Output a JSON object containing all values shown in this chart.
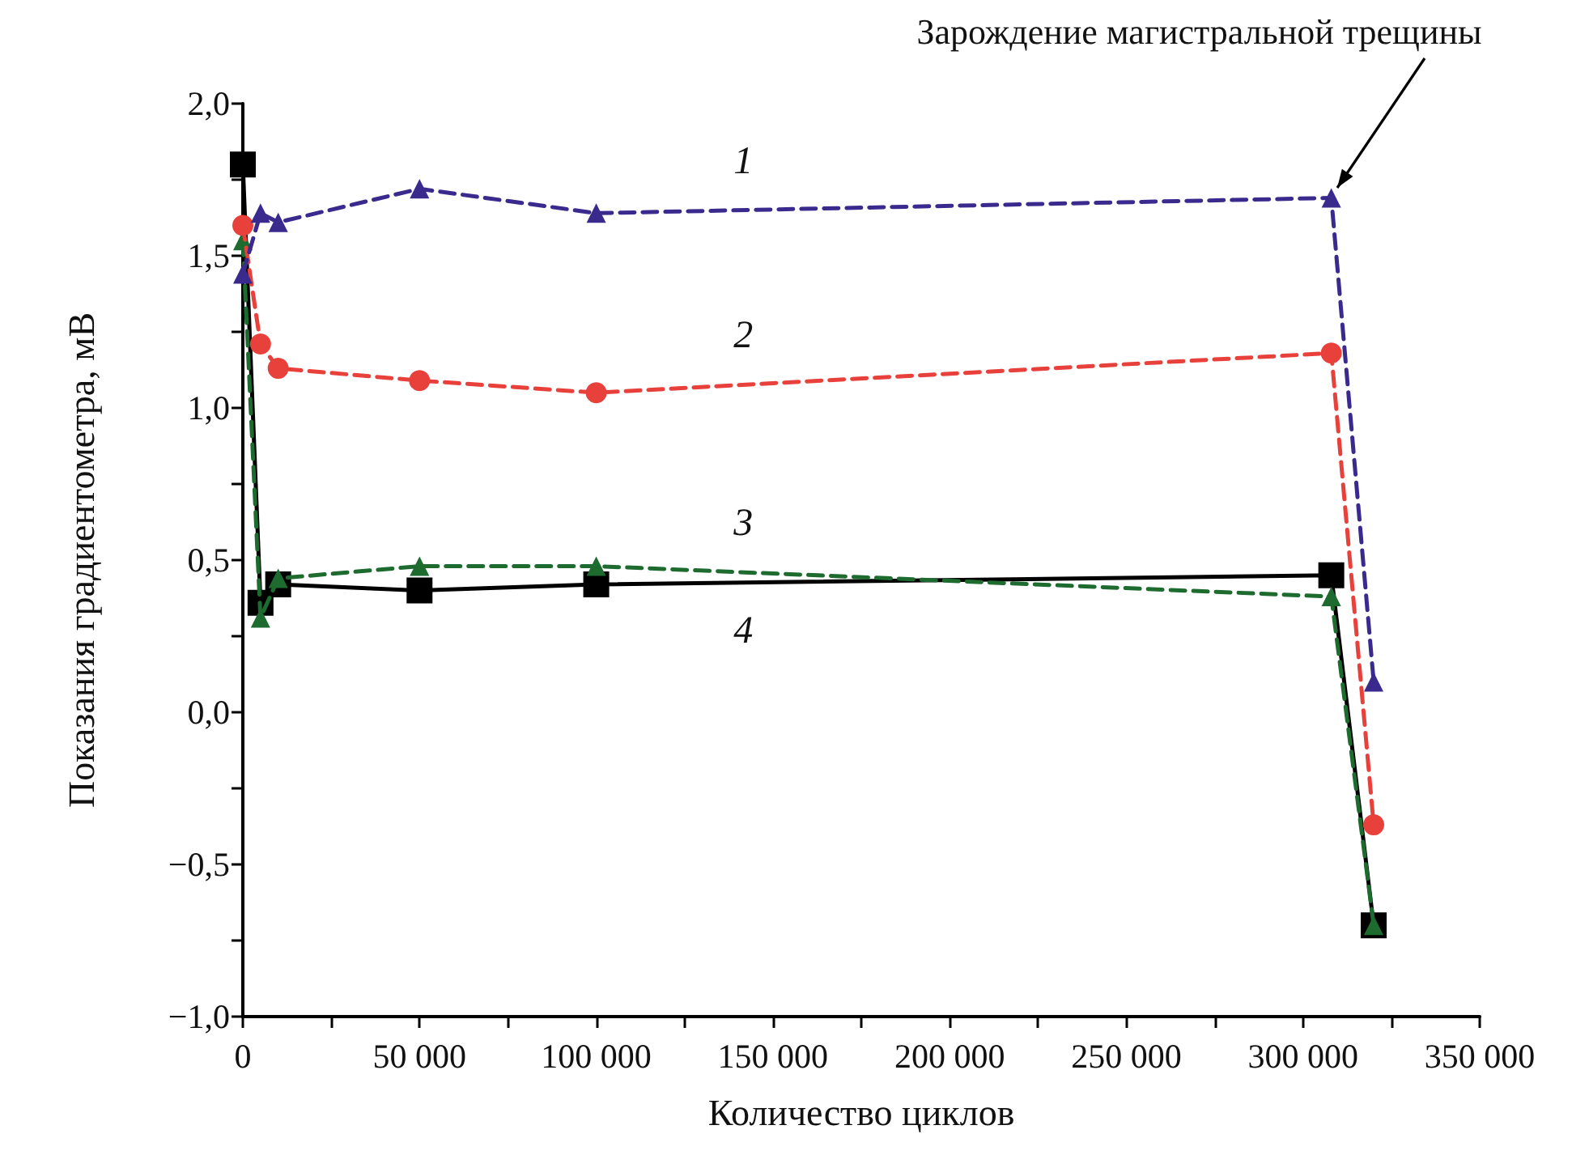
{
  "chart_data": {
    "type": "line",
    "xlabel": "Количество циклов",
    "ylabel": "Показания градиентометра, мВ",
    "xlim": [
      0,
      350000
    ],
    "xticks": [
      {
        "value": 0,
        "label": "0"
      },
      {
        "value": 25000,
        "label": null
      },
      {
        "value": 50000,
        "label": "50 000"
      },
      {
        "value": 75000,
        "label": null
      },
      {
        "value": 100000,
        "label": "100 000"
      },
      {
        "value": 125000,
        "label": null
      },
      {
        "value": 150000,
        "label": "150 000"
      },
      {
        "value": 175000,
        "label": null
      },
      {
        "value": 200000,
        "label": "200 000"
      },
      {
        "value": 225000,
        "label": null
      },
      {
        "value": 250000,
        "label": "250 000"
      },
      {
        "value": 275000,
        "label": null
      },
      {
        "value": 300000,
        "label": "300 000"
      },
      {
        "value": 325000,
        "label": null
      },
      {
        "value": 350000,
        "label": "350 000"
      }
    ],
    "ylim": [
      -1.0,
      2.0
    ],
    "yticks": [
      {
        "value": -1,
        "label": "−1,0"
      },
      {
        "value": -0.75,
        "label": null
      },
      {
        "value": -0.5,
        "label": "−0,5"
      },
      {
        "value": -0.25,
        "label": null
      },
      {
        "value": 0,
        "label": "0,0"
      },
      {
        "value": 0.25,
        "label": null
      },
      {
        "value": 0.5,
        "label": "0,5"
      },
      {
        "value": 0.75,
        "label": null
      },
      {
        "value": 1,
        "label": "1,0"
      },
      {
        "value": 1.25,
        "label": null
      },
      {
        "value": 1.5,
        "label": "1,5"
      },
      {
        "value": 1.75,
        "label": null
      },
      {
        "value": 2,
        "label": "2,0"
      }
    ],
    "x": [
      0,
      5000,
      10000,
      50000,
      100000,
      308000,
      320000
    ],
    "series": [
      {
        "name": "1",
        "color": "#3b2a8e",
        "marker": "triangle",
        "line_style": "dashed",
        "values": [
          1.44,
          1.64,
          1.61,
          1.72,
          1.64,
          1.69,
          0.1
        ]
      },
      {
        "name": "2",
        "color": "#e8403a",
        "marker": "circle",
        "line_style": "dashed",
        "values": [
          1.6,
          1.21,
          1.13,
          1.09,
          1.05,
          1.18,
          -0.37
        ]
      },
      {
        "name": "3",
        "color": "#1e6b30",
        "marker": "triangle",
        "line_style": "dashed",
        "values": [
          1.55,
          0.31,
          0.44,
          0.48,
          0.48,
          0.38,
          -0.7
        ]
      },
      {
        "name": "4",
        "color": "#000000",
        "marker": "square",
        "line_style": "solid",
        "values": [
          1.8,
          0.36,
          0.42,
          0.4,
          0.42,
          0.45,
          -0.7
        ]
      }
    ],
    "annotations": [
      {
        "text": "Зарождение магистральной трещины",
        "x": 308000,
        "y": 1.69
      }
    ],
    "grid": false,
    "legend": false
  }
}
